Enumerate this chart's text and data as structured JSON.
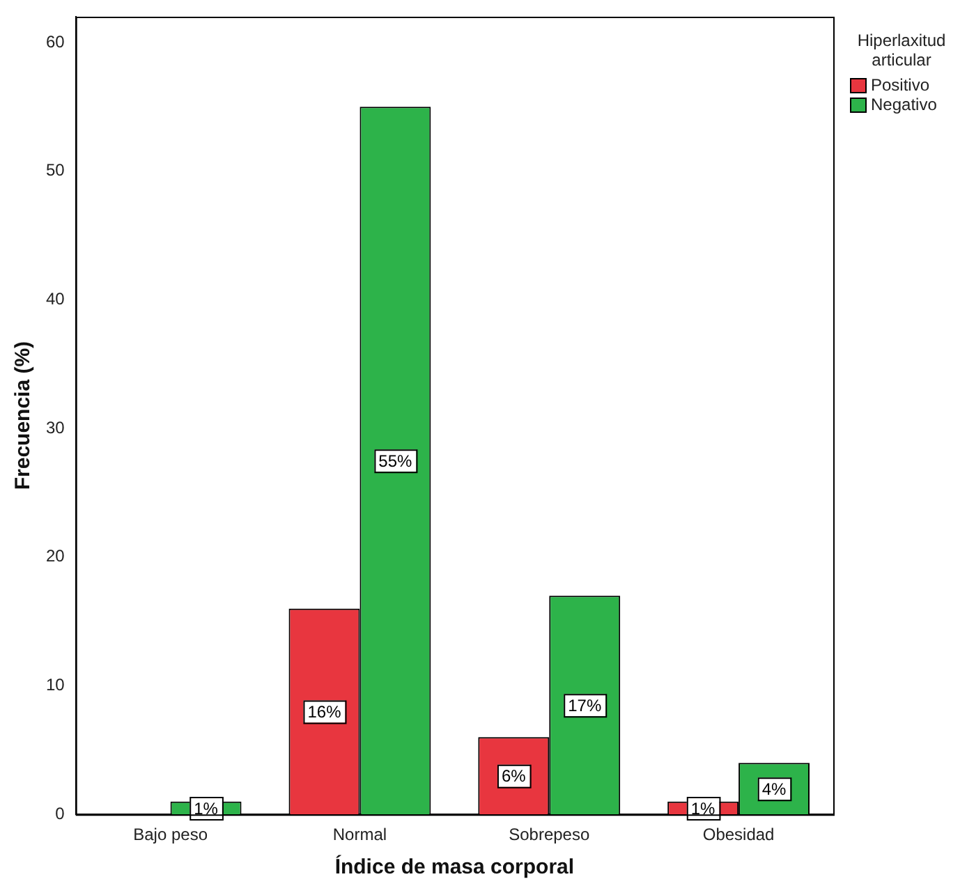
{
  "chart_data": {
    "type": "bar",
    "xlabel": "Índice de masa corporal",
    "ylabel": "Frecuencia (%)",
    "legend_title": "Hiperlaxitud articular",
    "categories": [
      "Bajo peso",
      "Normal",
      "Sobrepeso",
      "Obesidad"
    ],
    "series": [
      {
        "name": "Positivo",
        "color": "#e8363f",
        "values": [
          null,
          16,
          6,
          1
        ],
        "value_labels": [
          null,
          "16%",
          "6%",
          "1%"
        ]
      },
      {
        "name": "Negativo",
        "color": "#2db34a",
        "values": [
          1,
          55,
          17,
          4
        ],
        "value_labels": [
          "1%",
          "55%",
          "17%",
          "4%"
        ]
      }
    ],
    "ylim": [
      0,
      62
    ],
    "yticks": [
      0,
      10,
      20,
      30,
      40,
      50,
      60
    ],
    "grid": false,
    "legend": "top right"
  }
}
